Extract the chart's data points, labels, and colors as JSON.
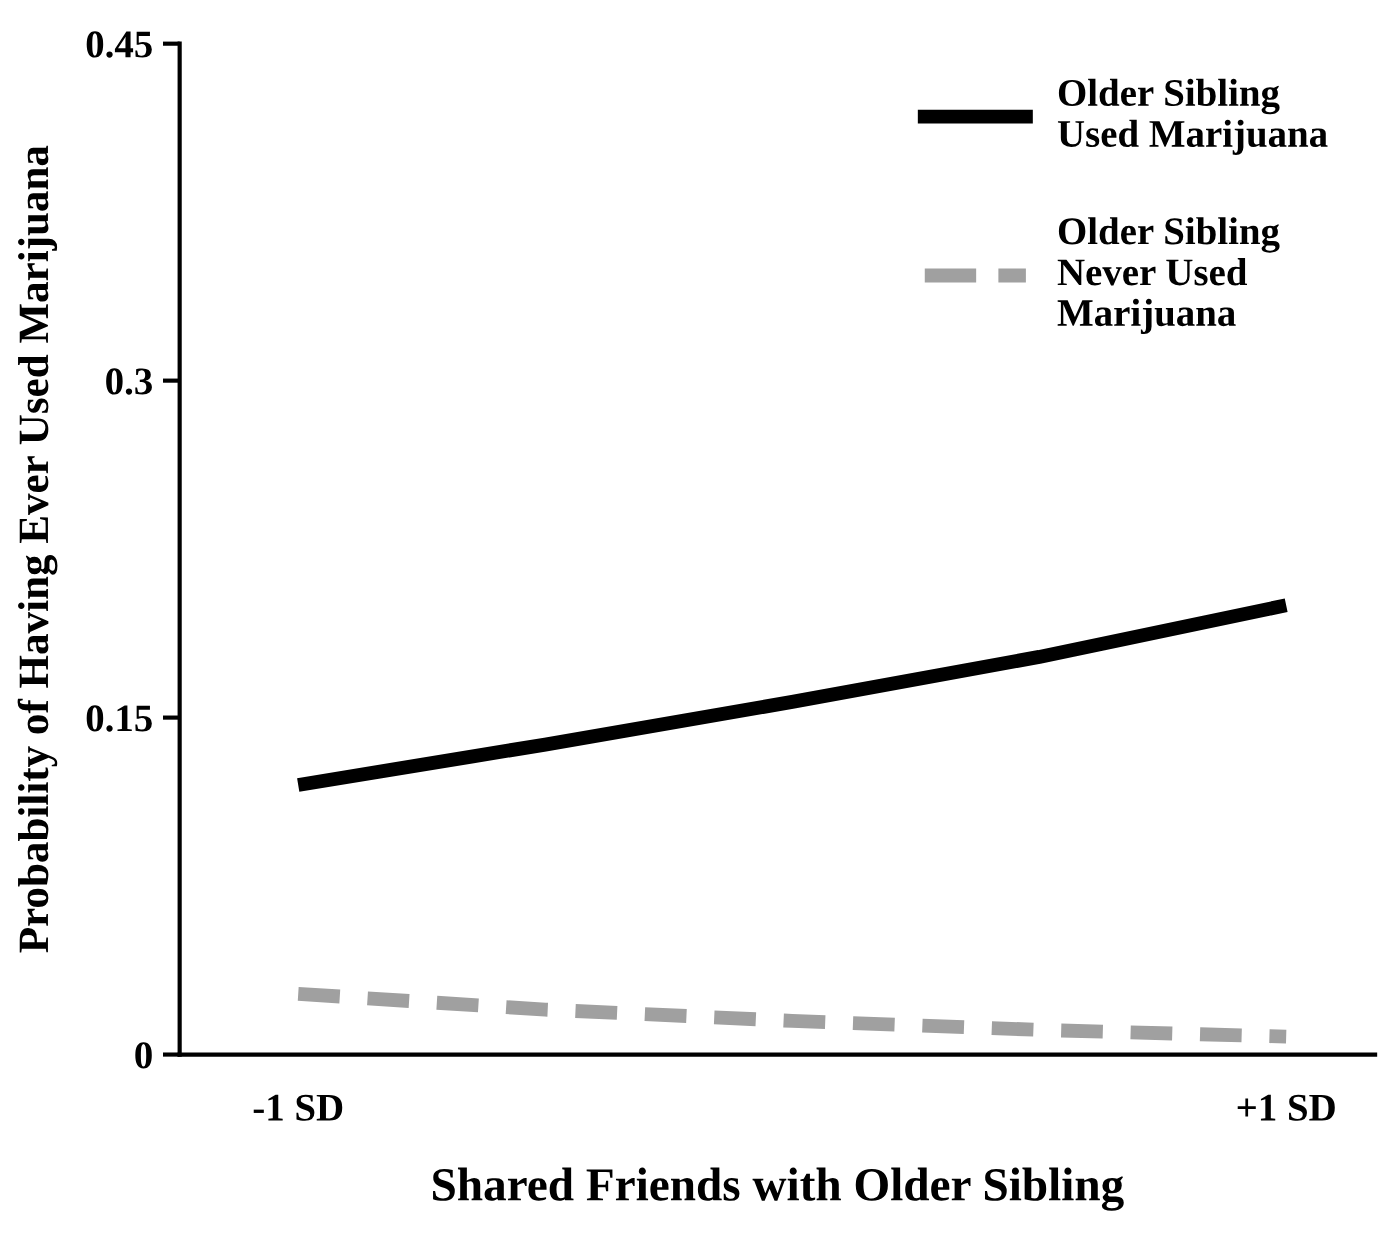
{
  "chart_data": {
    "type": "line",
    "xlabel": "Shared Friends with Older Sibling",
    "ylabel": "Probability of Having Ever Used Marijuana",
    "categories": [
      "-1 SD",
      null,
      null,
      null,
      "+1 SD"
    ],
    "series": [
      {
        "name": "Older Sibling\nUsed Marijuana",
        "color": "#000000",
        "line_style": "solid",
        "values": [
          0.12,
          0.138,
          0.157,
          0.177,
          0.2
        ]
      },
      {
        "name": "Older Sibling\nNever Used\nMarijuana",
        "color": "#a0a0a0",
        "line_style": "dashed",
        "values": [
          0.027,
          0.02,
          0.015,
          0.011,
          0.008
        ]
      }
    ],
    "ylim": [
      0,
      0.45
    ],
    "yticks": [
      0,
      0.15,
      0.3,
      0.45
    ],
    "grid": false,
    "legend": "top right",
    "marker": "none"
  }
}
